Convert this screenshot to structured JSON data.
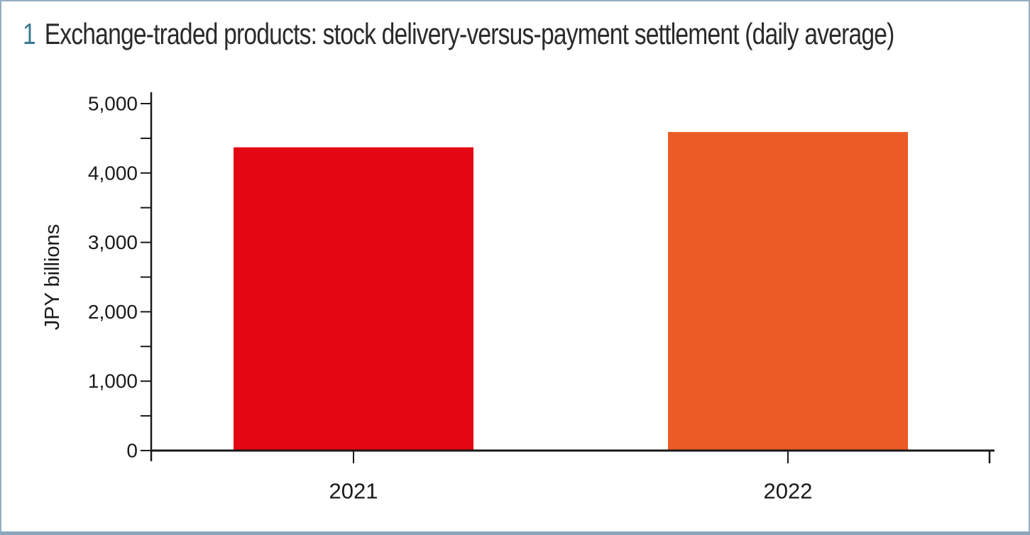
{
  "figure": {
    "number": "1",
    "title": "Exchange-traded products: stock delivery-versus-payment settlement (daily average)"
  },
  "colors": {
    "figure_number": "#3d7994",
    "title_text": "#2a2a2a",
    "panel_border": "#93adc2",
    "panel_bottom_band": "#8ba6bb",
    "axis": "#1a1a1a",
    "bar_2021": "#e30613",
    "bar_2022": "#ea5b25"
  },
  "chart_data": {
    "type": "bar",
    "title": "Exchange-traded products: stock delivery-versus-payment settlement (daily average)",
    "categories": [
      "2021",
      "2022"
    ],
    "values": [
      4370,
      4590
    ],
    "series_colors": [
      "#e30613",
      "#ea5b25"
    ],
    "xlabel": "",
    "ylabel": "JPY billions",
    "ylim": [
      0,
      5000
    ],
    "ytick_interval": 1000,
    "minor_tick_interval": 500,
    "ytick_labels": [
      "0",
      "1,000",
      "2,000",
      "3,000",
      "4,000",
      "5,000"
    ],
    "grid": false,
    "legend": false
  }
}
